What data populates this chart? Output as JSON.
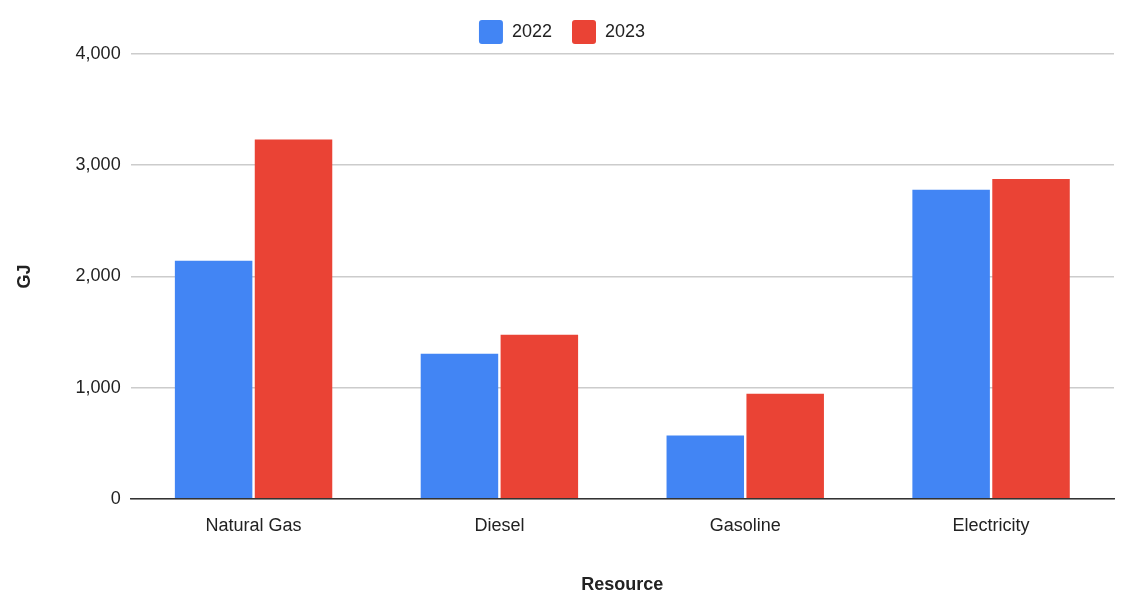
{
  "chart_data": {
    "type": "bar",
    "xlabel": "Resource",
    "ylabel": "GJ",
    "categories": [
      "Natural Gas",
      "Diesel",
      "Gasoline",
      "Electricity"
    ],
    "series": [
      {
        "name": "2022",
        "color": "#4285f4",
        "values": [
          2140,
          1305,
          570,
          2780
        ]
      },
      {
        "name": "2023",
        "color": "#ea4335",
        "values": [
          3230,
          1475,
          945,
          2875
        ]
      }
    ],
    "ylim": [
      0,
      4000
    ],
    "yticks": [
      {
        "value": 0,
        "label": "0"
      },
      {
        "value": 1000,
        "label": "1,000"
      },
      {
        "value": 2000,
        "label": "2,000"
      },
      {
        "value": 3000,
        "label": "3,000"
      },
      {
        "value": 4000,
        "label": "4,000"
      }
    ],
    "grid": "y",
    "legend": "top"
  }
}
